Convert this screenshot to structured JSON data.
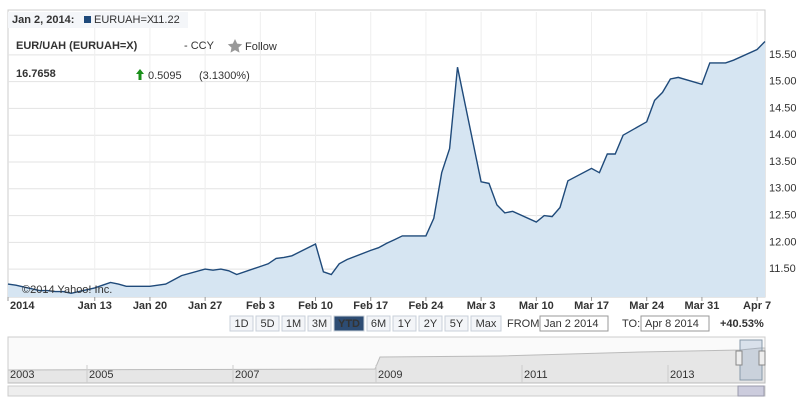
{
  "chart_data": {
    "type": "area",
    "hover_date": "Jan 2, 2014:",
    "x": [
      "2014-01-02",
      "2014-01-03",
      "2014-01-06",
      "2014-01-07",
      "2014-01-08",
      "2014-01-09",
      "2014-01-10",
      "2014-01-13",
      "2014-01-14",
      "2014-01-15",
      "2014-01-16",
      "2014-01-17",
      "2014-01-20",
      "2014-01-21",
      "2014-01-22",
      "2014-01-23",
      "2014-01-24",
      "2014-01-27",
      "2014-01-28",
      "2014-01-29",
      "2014-01-30",
      "2014-01-31",
      "2014-02-03",
      "2014-02-04",
      "2014-02-05",
      "2014-02-06",
      "2014-02-07",
      "2014-02-10",
      "2014-02-11",
      "2014-02-12",
      "2014-02-13",
      "2014-02-14",
      "2014-02-17",
      "2014-02-18",
      "2014-02-19",
      "2014-02-20",
      "2014-02-21",
      "2014-02-24",
      "2014-02-25",
      "2014-02-26",
      "2014-02-27",
      "2014-02-28",
      "2014-03-03",
      "2014-03-04",
      "2014-03-05",
      "2014-03-06",
      "2014-03-07",
      "2014-03-10",
      "2014-03-11",
      "2014-03-12",
      "2014-03-13",
      "2014-03-14",
      "2014-03-17",
      "2014-03-18",
      "2014-03-19",
      "2014-03-20",
      "2014-03-21",
      "2014-03-24",
      "2014-03-25",
      "2014-03-26",
      "2014-03-27",
      "2014-03-28",
      "2014-03-31",
      "2014-04-01",
      "2014-04-02",
      "2014-04-03",
      "2014-04-04",
      "2014-04-07",
      "2014-04-08"
    ],
    "series": [
      {
        "name": "EURUAH=X",
        "color": "#1f4a7a",
        "fill": "#d6e5f2",
        "values": [
          11.22,
          11.2,
          11.1,
          11.1,
          11.08,
          11.08,
          11.05,
          11.15,
          11.2,
          11.25,
          11.22,
          11.18,
          11.18,
          11.2,
          11.22,
          11.3,
          11.38,
          11.5,
          11.48,
          11.5,
          11.47,
          11.4,
          11.55,
          11.6,
          11.7,
          11.72,
          11.75,
          11.97,
          11.45,
          11.4,
          11.6,
          11.68,
          11.85,
          11.9,
          11.98,
          12.05,
          12.12,
          12.12,
          12.45,
          13.3,
          13.75,
          15.27,
          13.13,
          13.1,
          12.7,
          12.55,
          12.58,
          12.38,
          12.5,
          12.48,
          12.65,
          13.15,
          13.38,
          13.3,
          13.65,
          13.65,
          14.0,
          14.25,
          14.65,
          14.8,
          15.05,
          15.08,
          14.95,
          15.35,
          15.35,
          15.35,
          15.4,
          15.6,
          15.75
        ]
      }
    ],
    "xlim": [
      "2014-01-02",
      "2014-04-08"
    ],
    "xticks": [
      {
        "value": "2014-01-02",
        "label": "2014"
      },
      {
        "value": "2014-01-13",
        "label": "Jan 13"
      },
      {
        "value": "2014-01-20",
        "label": "Jan 20"
      },
      {
        "value": "2014-01-27",
        "label": "Jan 27"
      },
      {
        "value": "2014-02-03",
        "label": "Feb 3"
      },
      {
        "value": "2014-02-10",
        "label": "Feb 10"
      },
      {
        "value": "2014-02-17",
        "label": "Feb 17"
      },
      {
        "value": "2014-02-24",
        "label": "Feb 24"
      },
      {
        "value": "2014-03-03",
        "label": "Mar 3"
      },
      {
        "value": "2014-03-10",
        "label": "Mar 10"
      },
      {
        "value": "2014-03-17",
        "label": "Mar 17"
      },
      {
        "value": "2014-03-24",
        "label": "Mar 24"
      },
      {
        "value": "2014-03-31",
        "label": "Mar 31"
      },
      {
        "value": "2014-04-07",
        "label": "Apr 7"
      }
    ],
    "ylim": [
      10.98,
      16.3
    ],
    "yticks": [
      {
        "value": 11.5,
        "label": "11.50"
      },
      {
        "value": 12,
        "label": "12.00"
      },
      {
        "value": 12.5,
        "label": "12.50"
      },
      {
        "value": 13,
        "label": "13.00"
      },
      {
        "value": 13.5,
        "label": "13.50"
      },
      {
        "value": 14,
        "label": "14.00"
      },
      {
        "value": 14.5,
        "label": "14.50"
      },
      {
        "value": 15,
        "label": "15.00"
      },
      {
        "value": 15.5,
        "label": "15.50"
      }
    ],
    "grid": true,
    "watermark": "©2014 Yahoo! Inc."
  },
  "header": {
    "title": "EUR/UAH (EURUAH=X)",
    "exchange": "- CCY",
    "follow": "Follow",
    "price": "16.7658",
    "change": "0.5095",
    "change_pct": "(3.1300%)"
  },
  "controls": {
    "ranges": [
      "1D",
      "5D",
      "1M",
      "3M",
      "YTD",
      "6M",
      "1Y",
      "2Y",
      "5Y",
      "Max"
    ],
    "from_label": "FROM:",
    "from": "Jan 2 2014",
    "to_label": "TO:",
    "to": "Apr 8 2014",
    "period_change": "+40.53%"
  },
  "navigator": {
    "years": [
      "2003",
      "2005",
      "2007",
      "2009",
      "2011",
      "2013"
    ]
  }
}
